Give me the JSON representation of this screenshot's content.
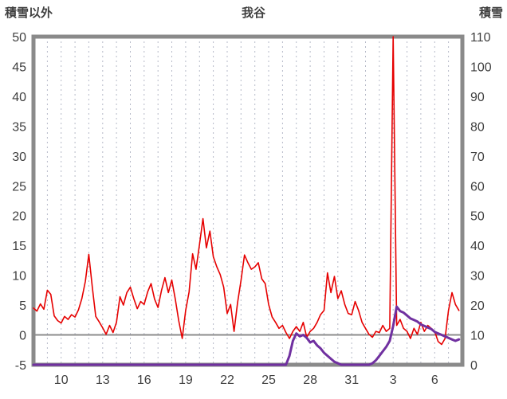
{
  "chart_data": {
    "type": "line",
    "title": "我谷",
    "left_axis": {
      "label": "積雪以外",
      "min": -5,
      "max": 50,
      "tick_step": 5,
      "ticks": [
        50,
        45,
        40,
        35,
        30,
        25,
        20,
        15,
        10,
        5,
        0,
        -5
      ]
    },
    "right_axis": {
      "label": "積雪",
      "min": 0,
      "max": 110,
      "tick_step": 10,
      "ticks": [
        110,
        100,
        90,
        80,
        70,
        60,
        50,
        40,
        30,
        20,
        10,
        0
      ]
    },
    "x_axis": {
      "domain": [
        8,
        39
      ],
      "tick_labels": [
        "10",
        "13",
        "16",
        "19",
        "22",
        "25",
        "28",
        "31",
        "3",
        "6"
      ],
      "tick_positions": [
        10,
        13,
        16,
        19,
        22,
        25,
        28,
        31,
        34,
        37
      ],
      "gridlines": "dashed vertical, one per day",
      "zero_reference_line": 0
    },
    "colors": {
      "frame": "#8a8a8a",
      "grid": "#b6bac8",
      "zero_line": "#8c8c8c",
      "text": "#3f3f3f",
      "series_other_than_snow": "#e60000",
      "series_snow_depth": "#7030a0"
    },
    "series": [
      {
        "name": "積雪以外",
        "key": "other-than-snow",
        "axis": "left",
        "color": "#e60000",
        "width": 1.6,
        "x_start": 8,
        "x_step": 0.25,
        "values": [
          4.5,
          4.0,
          5.2,
          4.3,
          7.5,
          6.8,
          3.2,
          2.4,
          2.0,
          3.1,
          2.6,
          3.4,
          3.0,
          4.2,
          6.1,
          9.0,
          13.5,
          8.0,
          3.1,
          2.2,
          1.2,
          0.1,
          1.6,
          0.4,
          2.1,
          6.4,
          5.0,
          7.1,
          8.0,
          6.1,
          4.4,
          5.6,
          5.1,
          7.2,
          8.6,
          6.0,
          4.6,
          7.4,
          9.6,
          7.1,
          9.2,
          6.0,
          2.4,
          -0.6,
          4.1,
          7.2,
          13.6,
          11.0,
          15.2,
          19.5,
          14.6,
          17.4,
          13.1,
          11.4,
          10.1,
          8.0,
          3.6,
          5.1,
          0.6,
          5.4,
          9.1,
          13.4,
          12.1,
          11.0,
          11.4,
          12.1,
          9.4,
          8.6,
          5.1,
          3.0,
          2.1,
          1.1,
          1.6,
          0.4,
          -0.6,
          0.6,
          1.4,
          0.6,
          2.1,
          -0.4,
          0.6,
          1.1,
          2.1,
          3.4,
          4.1,
          10.4,
          7.1,
          9.8,
          6.1,
          7.4,
          5.1,
          3.6,
          3.4,
          5.6,
          4.1,
          2.1,
          1.1,
          0.1,
          -0.4,
          0.6,
          0.4,
          1.6,
          0.6,
          1.1,
          52.0,
          1.6,
          2.6,
          1.1,
          0.6,
          -0.6,
          1.1,
          0.1,
          2.1,
          0.6,
          1.6,
          1.1,
          0.6,
          -1.1,
          -1.6,
          -0.6,
          4.1,
          7.1,
          5.1,
          4.1
        ]
      },
      {
        "name": "積雪",
        "key": "snow-depth",
        "axis": "right",
        "color": "#7030a0",
        "width": 3,
        "x_start": 8,
        "x_step": 0.25,
        "values": [
          0,
          0,
          0,
          0,
          0,
          0,
          0,
          0,
          0,
          0,
          0,
          0,
          0,
          0,
          0,
          0,
          0,
          0,
          0,
          0,
          0,
          0,
          0,
          0,
          0,
          0,
          0,
          0,
          0,
          0,
          0,
          0,
          0,
          0,
          0,
          0,
          0,
          0,
          0,
          0,
          0,
          0,
          0,
          0,
          0,
          0,
          0,
          0,
          0,
          0,
          0,
          0,
          0,
          0,
          0,
          0,
          0,
          0,
          0,
          0,
          0,
          0,
          0,
          0,
          0,
          0,
          0,
          0,
          0,
          0,
          0,
          0,
          0,
          0,
          3,
          8,
          10.5,
          9.5,
          10,
          9,
          7.5,
          8,
          6.5,
          5.5,
          4,
          3,
          2,
          1,
          0.5,
          0,
          0,
          0,
          0,
          0,
          0,
          0,
          0,
          0,
          0.5,
          1.5,
          3,
          4.5,
          6,
          8,
          13,
          19.5,
          18,
          17.5,
          16.5,
          15.5,
          15,
          14.5,
          13.5,
          13,
          12.5,
          12,
          11,
          10.5,
          10,
          9.5,
          9,
          8.5,
          8,
          8.5
        ]
      }
    ]
  }
}
